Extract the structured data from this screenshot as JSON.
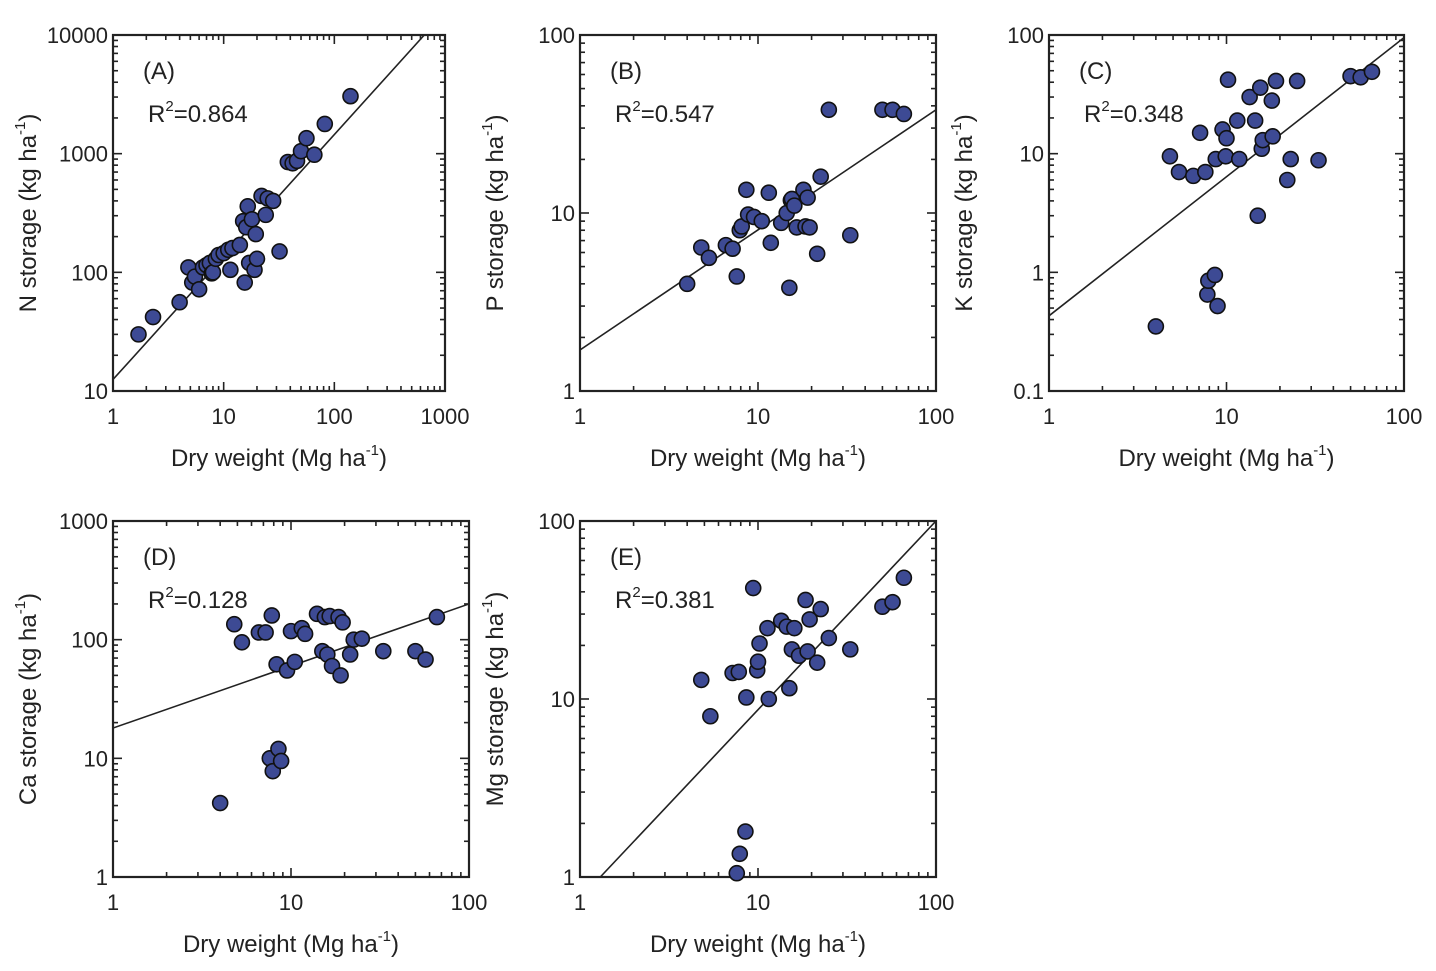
{
  "figure": {
    "x_axis_label": "Dry weight (Mg ha",
    "unit_superscript": "-1",
    "unit_close": ")",
    "r2_prefix": "R",
    "r2_power": "2",
    "r2_equals": "="
  },
  "chart_data": [
    {
      "type": "scatter",
      "id": "A",
      "tag": "(A)",
      "r2": "0.864",
      "ylabel": "N storage (kg ha",
      "xscale": "log",
      "yscale": "log",
      "xlim": [
        1,
        1000
      ],
      "ylim": [
        10,
        10000
      ],
      "x_ticks": [
        "1",
        "10",
        "100",
        "1000"
      ],
      "y_ticks": [
        "10",
        "100",
        "1000",
        "10000"
      ],
      "fit_line": [
        [
          1,
          12.5
        ],
        [
          650,
          10000
        ]
      ],
      "points": [
        [
          1.7,
          30
        ],
        [
          2.3,
          42
        ],
        [
          4,
          56
        ],
        [
          4.8,
          110
        ],
        [
          5.2,
          82
        ],
        [
          5.5,
          92
        ],
        [
          6,
          72
        ],
        [
          6.5,
          110
        ],
        [
          7,
          115
        ],
        [
          7.5,
          120
        ],
        [
          7.8,
          98
        ],
        [
          8,
          100
        ],
        [
          8.5,
          130
        ],
        [
          9,
          140
        ],
        [
          10,
          145
        ],
        [
          11,
          155
        ],
        [
          11.5,
          105
        ],
        [
          12,
          160
        ],
        [
          14,
          170
        ],
        [
          15,
          270
        ],
        [
          15.5,
          82
        ],
        [
          16,
          240
        ],
        [
          16.5,
          360
        ],
        [
          17,
          120
        ],
        [
          18,
          280
        ],
        [
          19,
          105
        ],
        [
          19.5,
          210
        ],
        [
          20,
          130
        ],
        [
          22,
          440
        ],
        [
          24,
          305
        ],
        [
          25,
          420
        ],
        [
          28,
          400
        ],
        [
          32,
          150
        ],
        [
          38,
          850
        ],
        [
          42,
          830
        ],
        [
          46,
          870
        ],
        [
          50,
          1050
        ],
        [
          56,
          1350
        ],
        [
          66,
          980
        ],
        [
          82,
          1780
        ],
        [
          140,
          3050
        ]
      ]
    },
    {
      "type": "scatter",
      "id": "B",
      "tag": "(B)",
      "r2": "0.547",
      "ylabel": "P storage (kg ha",
      "xscale": "log",
      "yscale": "log",
      "xlim": [
        1,
        100
      ],
      "ylim": [
        1,
        100
      ],
      "x_ticks": [
        "1",
        "10",
        "100"
      ],
      "y_ticks": [
        "1",
        "10",
        "100"
      ],
      "fit_line": [
        [
          1,
          1.7
        ],
        [
          100,
          38
        ]
      ],
      "points": [
        [
          4,
          4
        ],
        [
          4.8,
          6.4
        ],
        [
          5.3,
          5.6
        ],
        [
          6.6,
          6.6
        ],
        [
          7.2,
          6.3
        ],
        [
          7.6,
          4.4
        ],
        [
          7.9,
          8
        ],
        [
          8.1,
          8.4
        ],
        [
          8.6,
          13.5
        ],
        [
          8.8,
          9.8
        ],
        [
          9.5,
          9.5
        ],
        [
          10.5,
          9
        ],
        [
          11.5,
          13
        ],
        [
          11.8,
          6.8
        ],
        [
          13.5,
          8.8
        ],
        [
          14.5,
          10
        ],
        [
          15,
          3.8
        ],
        [
          15.3,
          11.8
        ],
        [
          15.5,
          12
        ],
        [
          16,
          11
        ],
        [
          16.5,
          8.3
        ],
        [
          18,
          13.5
        ],
        [
          18.5,
          8.4
        ],
        [
          19,
          12.2
        ],
        [
          19.5,
          8.3
        ],
        [
          21.5,
          5.9
        ],
        [
          22.5,
          16
        ],
        [
          25,
          38
        ],
        [
          33,
          7.5
        ],
        [
          50,
          38
        ],
        [
          57,
          38
        ],
        [
          66,
          36
        ]
      ]
    },
    {
      "type": "scatter",
      "id": "C",
      "tag": "(C)",
      "r2": "0.348",
      "ylabel": "K storage (kg ha",
      "xscale": "log",
      "yscale": "log",
      "xlim": [
        1,
        100
      ],
      "ylim": [
        0.1,
        100
      ],
      "x_ticks": [
        "1",
        "10",
        "100"
      ],
      "y_ticks": [
        "0.1",
        "1",
        "10",
        "100"
      ],
      "fit_line": [
        [
          1,
          0.43
        ],
        [
          100,
          95
        ]
      ],
      "points": [
        [
          4,
          0.35
        ],
        [
          4.8,
          9.5
        ],
        [
          5.4,
          7
        ],
        [
          6.5,
          6.5
        ],
        [
          7.1,
          15
        ],
        [
          7.6,
          7
        ],
        [
          7.8,
          0.65
        ],
        [
          7.9,
          0.85
        ],
        [
          8.6,
          0.95
        ],
        [
          8.7,
          9
        ],
        [
          8.9,
          0.52
        ],
        [
          9.5,
          16
        ],
        [
          9.9,
          9.5
        ],
        [
          10,
          13.5
        ],
        [
          10.2,
          42
        ],
        [
          11.5,
          19
        ],
        [
          11.8,
          9
        ],
        [
          13.5,
          30
        ],
        [
          14.5,
          19
        ],
        [
          15,
          3
        ],
        [
          15.5,
          36
        ],
        [
          15.8,
          11
        ],
        [
          16,
          13
        ],
        [
          18,
          28
        ],
        [
          18.2,
          14
        ],
        [
          19,
          41
        ],
        [
          22,
          6
        ],
        [
          23,
          9
        ],
        [
          25,
          41
        ],
        [
          33,
          8.8
        ],
        [
          50,
          45
        ],
        [
          57,
          44
        ],
        [
          66,
          49
        ]
      ]
    },
    {
      "type": "scatter",
      "id": "D",
      "tag": "(D)",
      "r2": "0.128",
      "ylabel": "Ca storage (kg ha",
      "xscale": "log",
      "yscale": "log",
      "xlim": [
        1,
        100
      ],
      "ylim": [
        1,
        1000
      ],
      "x_ticks": [
        "1",
        "10",
        "100"
      ],
      "y_ticks": [
        "1",
        "10",
        "100",
        "1000"
      ],
      "fit_line": [
        [
          1,
          18
        ],
        [
          100,
          200
        ]
      ],
      "points": [
        [
          4,
          4.2
        ],
        [
          4.8,
          135
        ],
        [
          5.3,
          95
        ],
        [
          6.6,
          115
        ],
        [
          7.2,
          115
        ],
        [
          7.6,
          10
        ],
        [
          7.8,
          160
        ],
        [
          7.9,
          7.8
        ],
        [
          8.3,
          62
        ],
        [
          8.5,
          12
        ],
        [
          8.8,
          9.5
        ],
        [
          9.5,
          55
        ],
        [
          10,
          118
        ],
        [
          10.5,
          65
        ],
        [
          11.5,
          125
        ],
        [
          12,
          112
        ],
        [
          14,
          165
        ],
        [
          15,
          80
        ],
        [
          15.5,
          155
        ],
        [
          16,
          75
        ],
        [
          16.5,
          158
        ],
        [
          17,
          60
        ],
        [
          18.5,
          155
        ],
        [
          19,
          50
        ],
        [
          19.5,
          140
        ],
        [
          21.5,
          75
        ],
        [
          22.5,
          100
        ],
        [
          25,
          102
        ],
        [
          33,
          80
        ],
        [
          50,
          80
        ],
        [
          57,
          68
        ],
        [
          66,
          155
        ]
      ]
    },
    {
      "type": "scatter",
      "id": "E",
      "tag": "(E)",
      "r2": "0.381",
      "ylabel": "Mg storage (kg ha",
      "xscale": "log",
      "yscale": "log",
      "xlim": [
        1,
        100
      ],
      "ylim": [
        1,
        100
      ],
      "x_ticks": [
        "1",
        "10",
        "100"
      ],
      "y_ticks": [
        "1",
        "10",
        "100"
      ],
      "fit_line": [
        [
          1.3,
          1
        ],
        [
          100,
          100
        ]
      ],
      "points": [
        [
          4.8,
          12.8
        ],
        [
          5.4,
          8
        ],
        [
          7.2,
          14
        ],
        [
          7.6,
          1.05
        ],
        [
          7.8,
          14.2
        ],
        [
          7.9,
          1.35
        ],
        [
          8.5,
          1.8
        ],
        [
          8.6,
          10.2
        ],
        [
          9.4,
          42
        ],
        [
          9.9,
          14.5
        ],
        [
          10,
          16.2
        ],
        [
          10.2,
          20.5
        ],
        [
          11.3,
          25
        ],
        [
          11.5,
          10
        ],
        [
          13.5,
          27.5
        ],
        [
          14.5,
          25.5
        ],
        [
          15,
          11.5
        ],
        [
          15.5,
          19
        ],
        [
          16,
          25
        ],
        [
          17,
          17.5
        ],
        [
          18.5,
          36
        ],
        [
          19,
          18.5
        ],
        [
          19.5,
          28
        ],
        [
          21.5,
          16
        ],
        [
          22.5,
          32
        ],
        [
          25,
          22
        ],
        [
          33,
          19
        ],
        [
          50,
          33
        ],
        [
          57,
          35
        ],
        [
          66,
          48
        ]
      ]
    }
  ]
}
